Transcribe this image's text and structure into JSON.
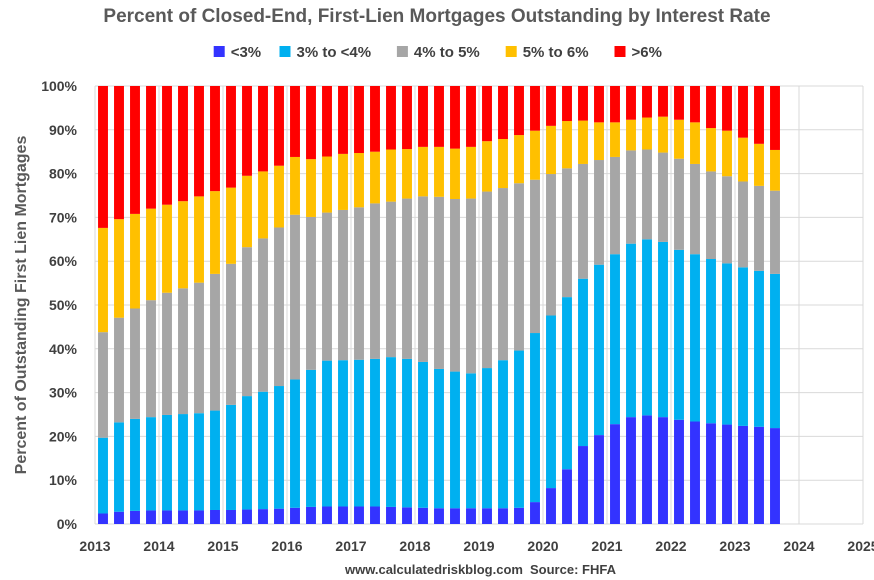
{
  "chart_data": {
    "type": "bar",
    "stacked": true,
    "title": "Percent of Closed-End, First-Lien Mortgages Outstanding by Interest Rate",
    "ylabel": "Percent of Outstanding First Lien Mortgages",
    "xlabel": "",
    "ylim": [
      0,
      100
    ],
    "yticks": [
      "0%",
      "10%",
      "20%",
      "30%",
      "40%",
      "50%",
      "60%",
      "70%",
      "80%",
      "90%",
      "100%"
    ],
    "xticks": [
      "2013",
      "2014",
      "2015",
      "2016",
      "2017",
      "2018",
      "2019",
      "2020",
      "2021",
      "2022",
      "2023",
      "2024",
      "2025"
    ],
    "x_start": 2013,
    "bars_per_year": 4,
    "grid": true,
    "legend_position": "top",
    "series": [
      {
        "name": "<3%",
        "color": "#3333ff",
        "values": [
          2.4,
          2.8,
          3.0,
          3.1,
          3.1,
          3.1,
          3.1,
          3.2,
          3.2,
          3.3,
          3.4,
          3.5,
          3.7,
          3.9,
          4.0,
          4.0,
          4.0,
          4.0,
          3.9,
          3.8,
          3.7,
          3.6,
          3.6,
          3.6,
          3.6,
          3.6,
          3.7,
          5.0,
          8.2,
          12.5,
          17.8,
          20.3,
          22.8,
          24.4,
          24.8,
          24.4,
          23.8,
          23.4,
          23.0,
          22.7,
          22.4,
          22.2,
          21.9
        ]
      },
      {
        "name": "3% to <4%",
        "color": "#00b0f0",
        "values": [
          17.3,
          20.4,
          21.0,
          21.3,
          21.8,
          22.0,
          22.2,
          22.7,
          24.0,
          25.9,
          26.8,
          28.0,
          29.3,
          31.3,
          33.3,
          33.4,
          33.5,
          33.7,
          34.2,
          33.9,
          33.3,
          31.8,
          31.2,
          30.8,
          32.0,
          33.8,
          35.9,
          38.6,
          39.4,
          39.3,
          38.2,
          38.9,
          38.8,
          39.6,
          40.2,
          40.0,
          38.8,
          38.2,
          37.5,
          36.8,
          36.2,
          35.6,
          35.2
        ]
      },
      {
        "name": "4% to 5%",
        "color": "#a6a6a6",
        "values": [
          24.1,
          23.9,
          25.2,
          26.7,
          27.9,
          28.7,
          29.8,
          31.2,
          32.2,
          34.0,
          35.0,
          36.2,
          37.6,
          34.9,
          33.8,
          34.3,
          34.8,
          35.5,
          35.5,
          36.6,
          37.8,
          39.3,
          39.4,
          39.9,
          40.3,
          39.3,
          38.2,
          35.0,
          32.3,
          29.4,
          26.2,
          23.9,
          22.2,
          21.3,
          20.5,
          20.4,
          20.8,
          20.6,
          20.0,
          19.9,
          19.6,
          19.4,
          19.0
        ]
      },
      {
        "name": "5% to 6%",
        "color": "#ffc000",
        "values": [
          23.8,
          22.5,
          21.6,
          20.9,
          20.1,
          19.9,
          19.7,
          18.9,
          17.4,
          16.3,
          15.3,
          14.1,
          13.2,
          13.2,
          12.8,
          12.8,
          12.4,
          11.8,
          11.9,
          11.3,
          11.3,
          11.4,
          11.5,
          11.8,
          11.5,
          11.2,
          11.0,
          11.2,
          11.0,
          10.8,
          9.9,
          8.6,
          7.9,
          7.0,
          7.3,
          8.2,
          8.9,
          9.5,
          9.9,
          10.4,
          10.0,
          9.6,
          9.3
        ]
      },
      {
        "name": ">6%",
        "color": "#ff0000",
        "values": [
          32.4,
          30.4,
          29.2,
          28.0,
          27.1,
          26.3,
          25.2,
          24.0,
          23.2,
          20.5,
          19.5,
          18.2,
          16.2,
          16.7,
          16.1,
          15.5,
          15.3,
          15.0,
          14.5,
          14.4,
          13.9,
          13.9,
          14.3,
          13.9,
          12.6,
          12.1,
          11.2,
          10.2,
          9.1,
          8.0,
          7.9,
          8.3,
          8.3,
          7.7,
          7.2,
          7.0,
          7.7,
          8.3,
          9.6,
          10.2,
          11.8,
          13.2,
          14.6
        ]
      }
    ]
  },
  "footer": {
    "site": "www.calculatedriskblog.com",
    "source": "Source: FHFA"
  }
}
